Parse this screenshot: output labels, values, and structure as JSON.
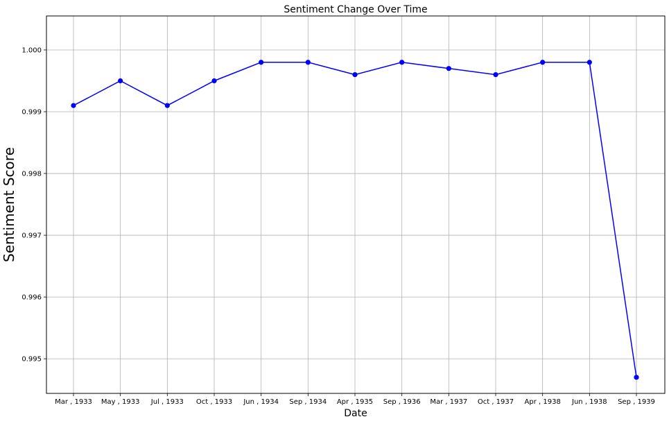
{
  "chart_data": {
    "type": "line",
    "title": "Sentiment Change Over Time",
    "xlabel": "Date",
    "ylabel": "Sentiment Score",
    "categories": [
      "Mar , 1933",
      "May , 1933",
      "Jul , 1933",
      "Oct , 1933",
      "Jun , 1934",
      "Sep , 1934",
      "Apr , 1935",
      "Sep , 1936",
      "Mar , 1937",
      "Oct , 1937",
      "Apr , 1938",
      "Jun , 1938",
      "Sep , 1939"
    ],
    "series": [
      {
        "values": [
          0.9991,
          0.9995,
          0.9991,
          0.9995,
          0.9998,
          0.9998,
          0.9996,
          0.9998,
          0.9997,
          0.9996,
          0.9998,
          0.9998,
          0.9947
        ]
      }
    ],
    "yticks": [
      0.995,
      0.996,
      0.997,
      0.998,
      0.999,
      1.0
    ],
    "ytick_labels": [
      "0.995",
      "0.996",
      "0.997",
      "0.998",
      "0.999",
      "1.000"
    ],
    "ylim": [
      0.99444,
      1.00055
    ],
    "grid": true,
    "colors": {
      "line": "#0000ff",
      "marker": "#0000ff",
      "grid": "#b0b0b0",
      "axes": "#000000"
    }
  }
}
